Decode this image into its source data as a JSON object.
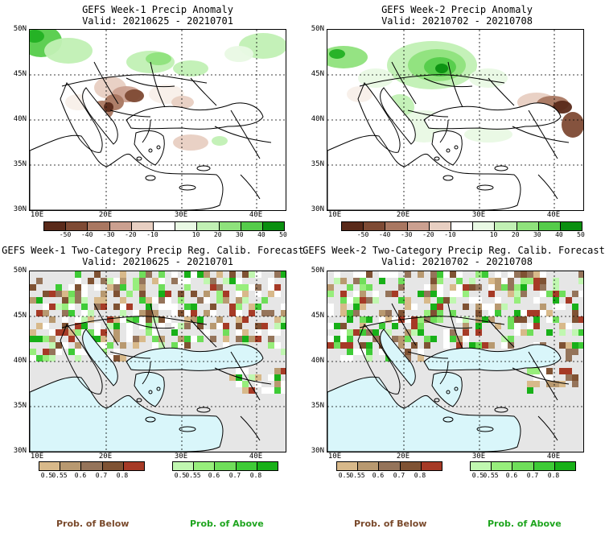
{
  "panels": [
    {
      "title": "GEFS Week-1 Precip Anomaly",
      "valid": "Valid: 20210625 - 20210701"
    },
    {
      "title": "GEFS Week-2 Precip Anomaly",
      "valid": "Valid: 20210702 - 20210708"
    },
    {
      "title": "GEFS Week-1 Two-Category Precip Reg. Calib. Forecast",
      "valid": "Valid: 20210625 - 20210701"
    },
    {
      "title": "GEFS Week-2 Two-Category Precip Reg. Calib. Forecast",
      "valid": "Valid: 20210702 - 20210708"
    }
  ],
  "lat_labels": [
    "50N",
    "45N",
    "40N",
    "35N",
    "30N"
  ],
  "lon_labels": [
    "10E",
    "20E",
    "30E",
    "40E"
  ],
  "anomaly_ticks": [
    "-50",
    "-40",
    "-30",
    "-20",
    "-10",
    "10",
    "20",
    "30",
    "40",
    "50"
  ],
  "prob_ticks": [
    "0.5",
    "0.55",
    "0.6",
    "0.7",
    "0.8"
  ],
  "prob_below_label": "Prob. of Below",
  "prob_above_label": "Prob. of Above",
  "colors": {
    "dry": [
      "#5a2a1a",
      "#7e4a34",
      "#a97761",
      "#cba090",
      "#e8cfc2",
      "#f8efe9"
    ],
    "wet": [
      "#e9f9e4",
      "#c1f0b4",
      "#8fe27c",
      "#55cc4a",
      "#22b023",
      "#0a8f10"
    ],
    "below": [
      "#d8b98a",
      "#b89970",
      "#95745a",
      "#7f5233",
      "#a63a26"
    ],
    "above": [
      "#c0f7b0",
      "#97ee7c",
      "#6fde5a",
      "#3ecb36",
      "#18b018"
    ],
    "sea": "#d9f6fa",
    "missing": "#e6e6e6"
  }
}
